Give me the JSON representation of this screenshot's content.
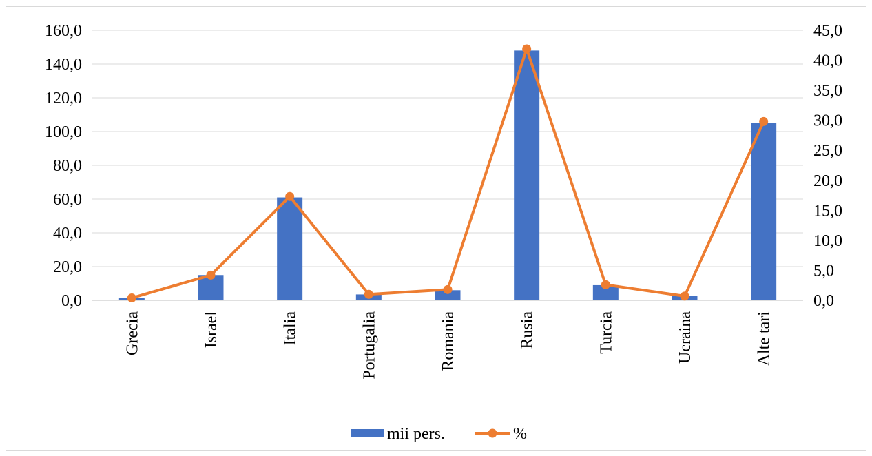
{
  "chart_data": {
    "type": "bar",
    "categories": [
      "Grecia",
      "Israel",
      "Italia",
      "Portugalia",
      "Romania",
      "Rusia",
      "Turcia",
      "Ucraina",
      "Alte tari"
    ],
    "series": [
      {
        "name": "mii pers.",
        "type": "bar",
        "axis": "left",
        "color": "#4472C4",
        "values": [
          1.5,
          15.0,
          61.0,
          3.5,
          6.0,
          148.0,
          9.0,
          2.5,
          105.0
        ]
      },
      {
        "name": "%",
        "type": "line",
        "axis": "right",
        "color": "#ED7D31",
        "values": [
          0.4,
          4.2,
          17.3,
          1.0,
          1.8,
          41.9,
          2.6,
          0.7,
          29.8
        ]
      }
    ],
    "y_left": {
      "lim": [
        0,
        160
      ],
      "ticks": [
        "0,0",
        "20,0",
        "40,0",
        "60,0",
        "80,0",
        "100,0",
        "120,0",
        "140,0",
        "160,0"
      ]
    },
    "y_right": {
      "lim": [
        0,
        45
      ],
      "ticks": [
        "0,0",
        "5,0",
        "10,0",
        "15,0",
        "20,0",
        "25,0",
        "30,0",
        "35,0",
        "40,0",
        "45,0"
      ]
    },
    "grid": true,
    "legend_position": "bottom-center",
    "title": "",
    "xlabel": "",
    "ylabel": ""
  }
}
